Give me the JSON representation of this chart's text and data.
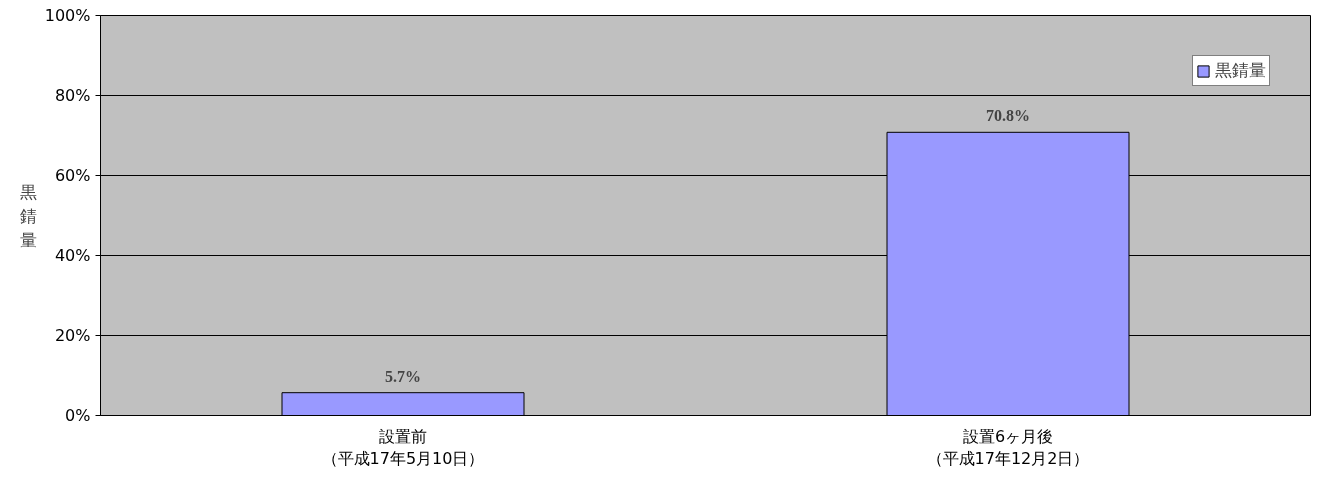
{
  "chart_data": {
    "type": "bar",
    "ylabel": "黒錆量",
    "categories": [
      "設置前（平成17年5月10日）",
      "設置6ヶ月後（平成17年12月2日）"
    ],
    "series": [
      {
        "name": "黒錆量",
        "color": "#9999ff",
        "values": [
          5.7,
          70.8
        ],
        "value_labels": [
          "5.7%",
          "70.8%"
        ]
      }
    ],
    "ylim": [
      0,
      100
    ],
    "yticks": [
      {
        "value": 0,
        "label": "0%"
      },
      {
        "value": 20,
        "label": "20%"
      },
      {
        "value": 40,
        "label": "40%"
      },
      {
        "value": 60,
        "label": "60%"
      },
      {
        "value": 80,
        "label": "80%"
      },
      {
        "value": 100,
        "label": "100%"
      }
    ],
    "grid": "y",
    "legend": "top right"
  }
}
